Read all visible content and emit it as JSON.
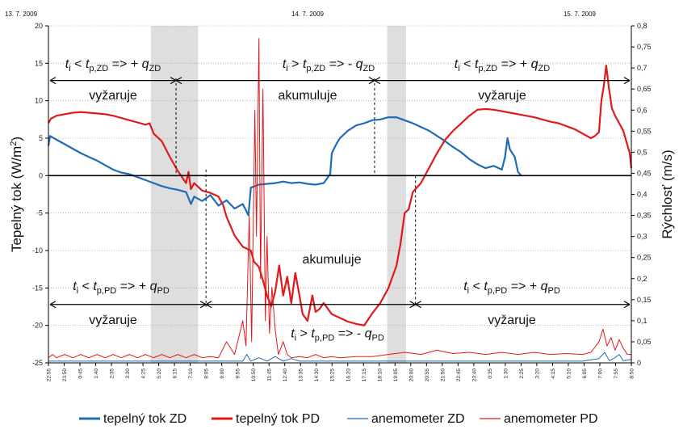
{
  "chart_data": {
    "type": "line",
    "dates": [
      "13. 7. 2009",
      "14. 7. 2009",
      "15. 7. 2009"
    ],
    "ylabel": "Tepelný tok (W/m²)",
    "ylabel_main": "Tepelný tok (W/m",
    "ylabel_sup": "2",
    "ylabel_close": ")",
    "y2label": "Rýchlosť (m/s)",
    "ylim": [
      -25,
      20
    ],
    "y2lim": [
      0,
      0.8
    ],
    "yticks": [
      20,
      15,
      10,
      5,
      0,
      -5,
      -10,
      -15,
      -20,
      -25
    ],
    "y2ticks": [
      "0,8",
      "0,75",
      "0,7",
      "0,65",
      "0,6",
      "0,55",
      "0,5",
      "0,45",
      "0,4",
      "0,35",
      "0,3",
      "0,25",
      "0,2",
      "0,15",
      "0,1",
      "0,05",
      "0"
    ],
    "x_ticks": [
      "22:55",
      "23:50",
      "0:45",
      "1:40",
      "2:35",
      "3:30",
      "4:25",
      "5:20",
      "6:15",
      "7:10",
      "8:05",
      "9:00",
      "9:55",
      "10:50",
      "11:45",
      "12:40",
      "13:35",
      "14:30",
      "15:25",
      "16:20",
      "17:15",
      "18:10",
      "19:05",
      "20:00",
      "20:55",
      "21:50",
      "22:45",
      "23:40",
      "0:35",
      "1:30",
      "2:25",
      "3:20",
      "4:15",
      "5:10",
      "6:05",
      "7:00",
      "7:55",
      "8:50"
    ],
    "shaded_bands": [
      [
        6.5,
        9.5
      ],
      [
        21.5,
        22.7
      ]
    ],
    "annotations": {
      "zd_left": {
        "ti": "t",
        "i": "i",
        "op": " < ",
        "tp": "t",
        "tp_sub": "p,ZD",
        "arrow": " => + ",
        "q": "q",
        "q_sub": "ZD",
        "label": "vyžaruje"
      },
      "zd_mid": {
        "ti": "t",
        "i": "i",
        "op": " > ",
        "tp": "t",
        "tp_sub": "p,ZD",
        "arrow": " => - ",
        "q": "q",
        "q_sub": "ZD",
        "label": "akumuluje"
      },
      "zd_right": {
        "ti": "t",
        "i": "i",
        "op": " < ",
        "tp": "t",
        "tp_sub": "p,ZD",
        "arrow": " => + ",
        "q": "q",
        "q_sub": "ZD",
        "label": "vyžaruje"
      },
      "pd_left": {
        "ti": "t",
        "i": "i",
        "op": " < ",
        "tp": "t",
        "tp_sub": "p,PD",
        "arrow": " => + ",
        "q": "q",
        "q_sub": "PD",
        "label": "vyžaruje"
      },
      "pd_mid": {
        "ti": "t",
        "i": "i",
        "op": " > ",
        "tp": "t",
        "tp_sub": "p,PD",
        "arrow": " => - ",
        "q": "q",
        "q_sub": "PD",
        "label": "akumuluje"
      },
      "pd_right": {
        "ti": "t",
        "i": "i",
        "op": " < ",
        "tp": "t",
        "tp_sub": "p,PD",
        "arrow": " => + ",
        "q": "q",
        "q_sub": "PD",
        "label": "vyžaruje"
      }
    },
    "series": [
      {
        "name": "tepelný tok ZD",
        "color": "#1f6bb5",
        "axis": "left",
        "width": 2.2,
        "points": [
          [
            0,
            4
          ],
          [
            0.2,
            5.3
          ],
          [
            1,
            4.8
          ],
          [
            2,
            4.2
          ],
          [
            3,
            3.6
          ],
          [
            4,
            3
          ],
          [
            5,
            2.5
          ],
          [
            6,
            2
          ],
          [
            7,
            1.4
          ],
          [
            8,
            0.8
          ],
          [
            9,
            0.4
          ],
          [
            10,
            0.2
          ],
          [
            11,
            -0.2
          ],
          [
            12,
            -0.6
          ],
          [
            13,
            -1
          ],
          [
            14,
            -1.4
          ],
          [
            15,
            -1.7
          ],
          [
            16,
            -1.9
          ],
          [
            17,
            -2.2
          ],
          [
            17.6,
            -3.8
          ],
          [
            18,
            -2.8
          ],
          [
            19,
            -3.4
          ],
          [
            20,
            -2.6
          ],
          [
            21,
            -4
          ],
          [
            22,
            -3.3
          ],
          [
            23,
            -4.4
          ],
          [
            24,
            -3.8
          ],
          [
            24.7,
            -5.3
          ],
          [
            25,
            -1.6
          ],
          [
            26,
            -1.2
          ],
          [
            27,
            -1.1
          ],
          [
            28,
            -1
          ],
          [
            29,
            -0.8
          ],
          [
            30,
            -1
          ],
          [
            31,
            -0.9
          ],
          [
            32,
            -1.1
          ],
          [
            33,
            -1.2
          ],
          [
            34,
            -1
          ],
          [
            34.8,
            0.2
          ],
          [
            35,
            3
          ],
          [
            35.6,
            4.3
          ],
          [
            36,
            5
          ],
          [
            37,
            6
          ],
          [
            38,
            6.7
          ],
          [
            39,
            7
          ],
          [
            40,
            7.4
          ],
          [
            41,
            7.5
          ],
          [
            42,
            7.8
          ],
          [
            43,
            7.8
          ],
          [
            44,
            7.4
          ],
          [
            45,
            7
          ],
          [
            46,
            6.5
          ],
          [
            47,
            6
          ],
          [
            48,
            5.3
          ],
          [
            49,
            4.6
          ],
          [
            50,
            3.8
          ],
          [
            51,
            3.1
          ],
          [
            52,
            2.2
          ],
          [
            53,
            1.5
          ],
          [
            54,
            1
          ],
          [
            55,
            1.3
          ],
          [
            56,
            0.8
          ],
          [
            56.4,
            2.5
          ],
          [
            56.7,
            5
          ],
          [
            57,
            3.5
          ],
          [
            57.6,
            2.5
          ],
          [
            58,
            0.5
          ],
          [
            58.4,
            0
          ]
        ]
      },
      {
        "name": "tepelný tok PD",
        "color": "#e0191c",
        "axis": "left",
        "width": 2.2,
        "points": [
          [
            0,
            7
          ],
          [
            0.3,
            7.6
          ],
          [
            1,
            8
          ],
          [
            2,
            8.2
          ],
          [
            3,
            8.4
          ],
          [
            4,
            8.5
          ],
          [
            5,
            8.4
          ],
          [
            6,
            8.3
          ],
          [
            7,
            8.2
          ],
          [
            8,
            8
          ],
          [
            9,
            7.7
          ],
          [
            10,
            7.4
          ],
          [
            11,
            7.1
          ],
          [
            12,
            6.8
          ],
          [
            12.5,
            7
          ],
          [
            13,
            5.6
          ],
          [
            14,
            4.6
          ],
          [
            15,
            2.5
          ],
          [
            16,
            0.6
          ],
          [
            17,
            -1
          ],
          [
            17.3,
            0.5
          ],
          [
            17.6,
            -1.8
          ],
          [
            18,
            -1
          ],
          [
            19,
            -2
          ],
          [
            20,
            -2.3
          ],
          [
            21,
            -2.8
          ],
          [
            21.6,
            -4
          ],
          [
            22,
            -5.5
          ],
          [
            23,
            -8
          ],
          [
            24,
            -9.5
          ],
          [
            25,
            -10
          ],
          [
            25.4,
            -11.5
          ],
          [
            26,
            -12.2
          ],
          [
            26.5,
            -14
          ],
          [
            27,
            -16
          ],
          [
            27.5,
            -17.5
          ],
          [
            28,
            -15.5
          ],
          [
            28.5,
            -12
          ],
          [
            29,
            -16
          ],
          [
            29.5,
            -13.5
          ],
          [
            30,
            -17
          ],
          [
            30.5,
            -13
          ],
          [
            31,
            -16
          ],
          [
            31.4,
            -18.5
          ],
          [
            32,
            -19.4
          ],
          [
            32.6,
            -16
          ],
          [
            33,
            -18.2
          ],
          [
            33.5,
            -17.8
          ],
          [
            34,
            -17
          ],
          [
            35,
            -18.5
          ],
          [
            36,
            -19
          ],
          [
            37,
            -19.5
          ],
          [
            38,
            -19.8
          ],
          [
            39,
            -20
          ],
          [
            39.5,
            -19.2
          ],
          [
            40,
            -18.4
          ],
          [
            41,
            -17
          ],
          [
            42,
            -15
          ],
          [
            43,
            -12
          ],
          [
            43.5,
            -9
          ],
          [
            44,
            -5
          ],
          [
            44.5,
            -4.5
          ],
          [
            45,
            -2.2
          ],
          [
            46,
            -1
          ],
          [
            47,
            1
          ],
          [
            48,
            3
          ],
          [
            49,
            4.8
          ],
          [
            50,
            6
          ],
          [
            51,
            7
          ],
          [
            52,
            8
          ],
          [
            53,
            8.8
          ],
          [
            54,
            8.9
          ],
          [
            55,
            8.8
          ],
          [
            56,
            8.6
          ],
          [
            57,
            8.4
          ],
          [
            58,
            8.2
          ],
          [
            59,
            8
          ],
          [
            60,
            7.8
          ],
          [
            61,
            7.5
          ],
          [
            62,
            7.2
          ],
          [
            63,
            7
          ],
          [
            64,
            6.6
          ],
          [
            65,
            6.2
          ],
          [
            66,
            5.6
          ],
          [
            67,
            5
          ],
          [
            67.5,
            5.3
          ],
          [
            68,
            5.8
          ],
          [
            68.3,
            10
          ],
          [
            68.6,
            12
          ],
          [
            68.9,
            14.7
          ],
          [
            69.2,
            12
          ],
          [
            69.6,
            9
          ],
          [
            70,
            8
          ],
          [
            70.5,
            7
          ],
          [
            71,
            6
          ],
          [
            71.4,
            4.5
          ],
          [
            71.8,
            3
          ],
          [
            72,
            1
          ]
        ]
      },
      {
        "name": "anemometer ZD",
        "color": "#1f6bb5",
        "axis": "right",
        "width": 1,
        "points": [
          [
            0,
            0.004
          ],
          [
            8,
            0.004
          ],
          [
            16,
            0.004
          ],
          [
            24,
            0.004
          ],
          [
            24.5,
            0.02
          ],
          [
            25,
            0.004
          ],
          [
            26,
            0.012
          ],
          [
            27,
            0.004
          ],
          [
            28,
            0.015
          ],
          [
            29,
            0.004
          ],
          [
            30,
            0.01
          ],
          [
            31,
            0.004
          ],
          [
            40,
            0.004
          ],
          [
            50,
            0.004
          ],
          [
            60,
            0.004
          ],
          [
            66,
            0.004
          ],
          [
            68,
            0.01
          ],
          [
            68.7,
            0.025
          ],
          [
            69.3,
            0.005
          ],
          [
            70,
            0.012
          ],
          [
            70.5,
            0.02
          ],
          [
            71,
            0.005
          ],
          [
            72,
            0.008
          ]
        ]
      },
      {
        "name": "anemometer PD",
        "color": "#e0191c",
        "axis": "right",
        "width": 1,
        "points": [
          [
            0,
            0.012
          ],
          [
            0.5,
            0.02
          ],
          [
            1,
            0.012
          ],
          [
            2,
            0.02
          ],
          [
            3,
            0.012
          ],
          [
            4,
            0.02
          ],
          [
            5,
            0.012
          ],
          [
            6,
            0.02
          ],
          [
            7,
            0.012
          ],
          [
            8,
            0.02
          ],
          [
            9,
            0.012
          ],
          [
            10,
            0.02
          ],
          [
            11,
            0.012
          ],
          [
            12,
            0.02
          ],
          [
            13,
            0.012
          ],
          [
            14,
            0.02
          ],
          [
            15,
            0.012
          ],
          [
            16,
            0.02
          ],
          [
            17,
            0.012
          ],
          [
            18,
            0.02
          ],
          [
            19,
            0.012
          ],
          [
            20,
            0.015
          ],
          [
            21,
            0.012
          ],
          [
            22,
            0.05
          ],
          [
            23,
            0.02
          ],
          [
            24,
            0.1
          ],
          [
            24.4,
            0.04
          ],
          [
            24.8,
            0.35
          ],
          [
            25.1,
            0.05
          ],
          [
            25.5,
            0.6
          ],
          [
            25.7,
            0.3
          ],
          [
            26,
            0.77
          ],
          [
            26.2,
            0.2
          ],
          [
            26.5,
            0.65
          ],
          [
            26.8,
            0.1
          ],
          [
            27,
            0.3
          ],
          [
            27.3,
            0.07
          ],
          [
            27.6,
            0.18
          ],
          [
            28,
            0.08
          ],
          [
            28.4,
            0.02
          ],
          [
            29,
            0.05
          ],
          [
            29.5,
            0.02
          ],
          [
            30,
            0.012
          ],
          [
            31,
            0.015
          ],
          [
            32,
            0.012
          ],
          [
            33,
            0.02
          ],
          [
            34,
            0.012
          ],
          [
            35,
            0.015
          ],
          [
            36,
            0.012
          ],
          [
            38,
            0.015
          ],
          [
            40,
            0.015
          ],
          [
            42,
            0.02
          ],
          [
            44,
            0.025
          ],
          [
            46,
            0.02
          ],
          [
            48,
            0.03
          ],
          [
            50,
            0.022
          ],
          [
            52,
            0.025
          ],
          [
            54,
            0.02
          ],
          [
            56,
            0.025
          ],
          [
            58,
            0.02
          ],
          [
            60,
            0.025
          ],
          [
            62,
            0.02
          ],
          [
            64,
            0.022
          ],
          [
            66,
            0.02
          ],
          [
            67,
            0.025
          ],
          [
            68,
            0.05
          ],
          [
            68.5,
            0.08
          ],
          [
            69,
            0.04
          ],
          [
            69.5,
            0.06
          ],
          [
            70,
            0.03
          ],
          [
            70.5,
            0.055
          ],
          [
            71,
            0.035
          ],
          [
            71.5,
            0.02
          ],
          [
            72,
            0.02
          ]
        ]
      }
    ],
    "legend": [
      "tepelný tok ZD",
      "tepelný tok PD",
      "anemometer ZD",
      "anemometer PD"
    ]
  }
}
